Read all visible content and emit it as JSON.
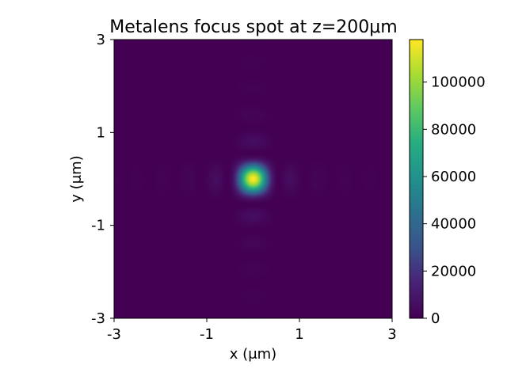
{
  "chart_data": {
    "type": "heatmap",
    "title": "Metalens focus spot at z=200μm",
    "xlabel": "x (μm)",
    "ylabel": "y (μm)",
    "xlim": [
      -3,
      3
    ],
    "ylim": [
      -3,
      3
    ],
    "xticks": [
      -3,
      -1,
      1,
      3
    ],
    "yticks": [
      -3,
      -1,
      1,
      3
    ],
    "xtick_labels": [
      "-3",
      "-1",
      "1",
      "3"
    ],
    "ytick_labels": [
      "-3",
      "-1",
      "1",
      "3"
    ],
    "colormap": "viridis",
    "grid": false,
    "field": {
      "center": [
        0,
        0
      ],
      "peak_intensity": 118000,
      "sinc_half_width_um": 0.56
    },
    "colorbar": {
      "min": 0,
      "max": 118000,
      "ticks": [
        0,
        20000,
        40000,
        60000,
        80000,
        100000
      ],
      "tick_labels": [
        "0",
        "20000",
        "40000",
        "60000",
        "80000",
        "100000"
      ]
    }
  }
}
